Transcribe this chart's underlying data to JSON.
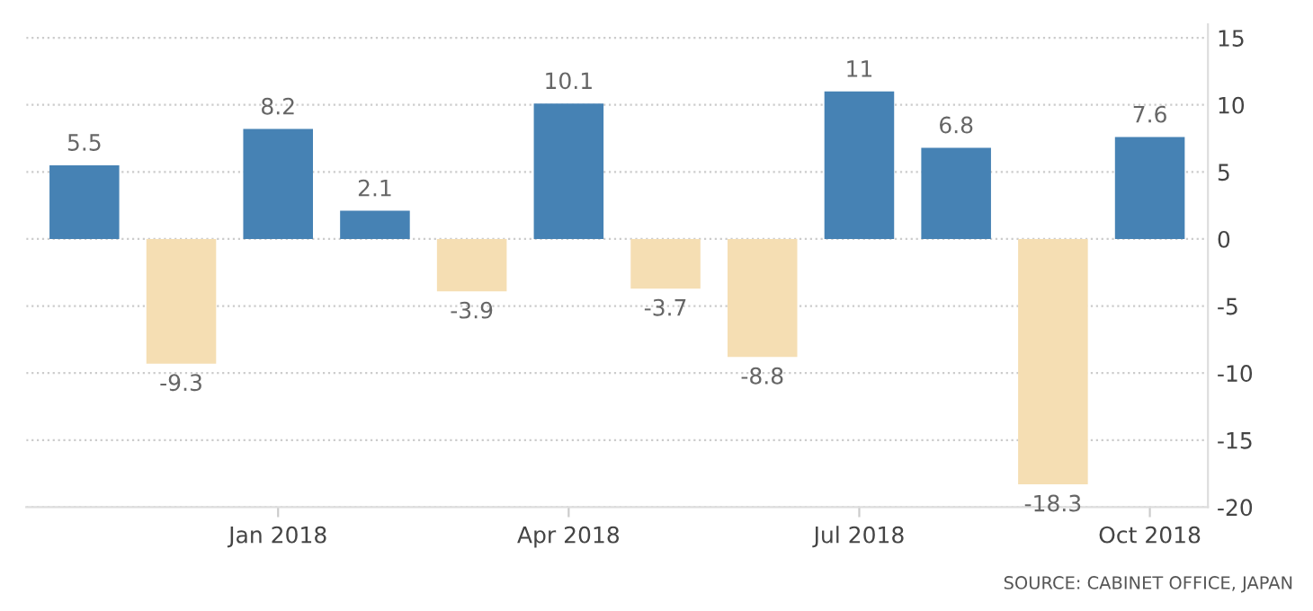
{
  "chart_data": {
    "type": "bar",
    "categories": [
      null,
      null,
      "Jan 2018",
      null,
      null,
      "Apr 2018",
      null,
      null,
      "Jul 2018",
      null,
      null,
      "Oct 2018"
    ],
    "values": [
      5.5,
      -9.3,
      8.2,
      2.1,
      -3.9,
      10.1,
      -3.7,
      -8.8,
      11,
      6.8,
      -18.3,
      7.6
    ],
    "colors": [
      "#4682b4",
      "#f5deb3",
      "#4682b4",
      "#4682b4",
      "#f5deb3",
      "#4682b4",
      "#f5deb3",
      "#f5deb3",
      "#4682b4",
      "#4682b4",
      "#f5deb3",
      "#4682b4"
    ],
    "data_labels": true,
    "ylim": [
      -20,
      16
    ],
    "yticks": [
      -20,
      -15,
      -10,
      -5,
      0,
      5,
      10,
      15
    ],
    "grid": "y",
    "annotations": [
      "SOURCE: CABINET OFFICE, JAPAN"
    ]
  }
}
